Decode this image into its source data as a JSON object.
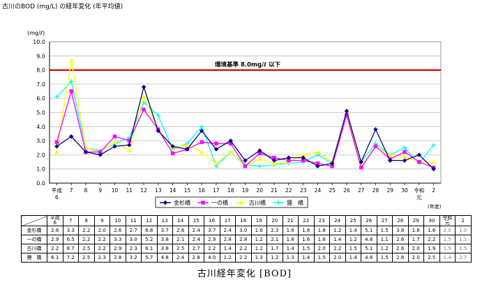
{
  "title": "古川のBOD (mg/L) の経年変化 (年平均値)",
  "caption": "古川経年変化 [BOD]",
  "chart_data": {
    "type": "line",
    "title": "古川のBOD (mg/L) の経年変化 (年平均値)",
    "ylabel": "(mg/ℓ)",
    "xlabel": "(年度)",
    "ylim": [
      0,
      10
    ],
    "yticks": [
      "0.0",
      "1.0",
      "2.0",
      "3.0",
      "4.0",
      "5.0",
      "6.0",
      "7.0",
      "8.0",
      "9.0",
      "10.0"
    ],
    "grid": true,
    "legend_position": "bottom-right",
    "categories": [
      "平成6",
      "7",
      "8",
      "9",
      "10",
      "11",
      "12",
      "13",
      "14",
      "15",
      "16",
      "17",
      "18",
      "19",
      "20",
      "21",
      "22",
      "23",
      "24",
      "25",
      "26",
      "27",
      "28",
      "29",
      "30",
      "令和元",
      "2"
    ],
    "series": [
      {
        "name": "金杉橋",
        "color": "#000080",
        "marker": "diamond",
        "values": [
          2.6,
          3.3,
          2.2,
          2.0,
          2.6,
          2.7,
          6.8,
          3.7,
          2.6,
          2.4,
          3.7,
          2.4,
          3.0,
          1.6,
          2.3,
          1.6,
          1.8,
          1.8,
          1.2,
          1.4,
          5.1,
          1.5,
          3.8,
          1.6,
          1.6,
          2.0,
          1.0
        ]
      },
      {
        "name": "一の橋",
        "color": "#ff00ff",
        "marker": "square",
        "values": [
          2.9,
          6.5,
          2.2,
          2.2,
          3.3,
          3.0,
          5.2,
          3.8,
          2.1,
          2.4,
          2.9,
          2.8,
          2.8,
          1.2,
          2.1,
          1.8,
          1.6,
          1.6,
          1.4,
          1.2,
          4.8,
          1.1,
          2.6,
          1.7,
          2.2,
          1.5,
          1.1
        ]
      },
      {
        "name": "古川橋",
        "color": "#ffff00",
        "marker": "triangle",
        "values": [
          2.2,
          8.7,
          2.5,
          2.2,
          2.9,
          2.3,
          6.1,
          3.8,
          2.5,
          2.7,
          2.2,
          1.4,
          2.2,
          1.2,
          1.7,
          1.4,
          1.5,
          2.0,
          2.2,
          1.5,
          5.1,
          1.2,
          2.6,
          2.0,
          1.9,
          1.5,
          1.5
        ]
      },
      {
        "name": "狸　橋",
        "color": "#00ffff",
        "marker": "none",
        "values": [
          6.1,
          7.2,
          2.5,
          2.3,
          2.8,
          3.2,
          5.7,
          4.8,
          2.4,
          2.8,
          4.0,
          1.2,
          2.2,
          1.3,
          1.2,
          1.3,
          1.4,
          1.5,
          2.0,
          1.4,
          4.8,
          1.5,
          2.8,
          2.0,
          2.5,
          1.4,
          2.7
        ]
      }
    ],
    "reference_line": {
      "value": 8.0,
      "label": "環境基準  8.0mg/ℓ  以下",
      "color": "#cc0000"
    }
  },
  "table": {
    "headers": [
      "平成\n6",
      "7",
      "8",
      "9",
      "10",
      "11",
      "12",
      "13",
      "14",
      "15",
      "16",
      "17",
      "18",
      "19",
      "20",
      "21",
      "22",
      "23",
      "24",
      "25",
      "26",
      "27",
      "28",
      "29",
      "30",
      "令和\n元",
      "2"
    ],
    "rows": [
      {
        "label": "金杉橋",
        "values": [
          "2.6",
          "3.3",
          "2.2",
          "2.0",
          "2.6",
          "2.7",
          "6.8",
          "3.7",
          "2.6",
          "2.4",
          "3.7",
          "2.4",
          "3.0",
          "1.6",
          "2.3",
          "1.6",
          "1.8",
          "1.8",
          "1.2",
          "1.4",
          "5.1",
          "1.5",
          "3.8",
          "1.6",
          "1.6",
          "2.0",
          "1.0"
        ]
      },
      {
        "label": "一の橋",
        "values": [
          "2.9",
          "6.5",
          "2.2",
          "2.2",
          "3.3",
          "3.0",
          "5.2",
          "3.8",
          "2.1",
          "2.4",
          "2.9",
          "2.8",
          "2.8",
          "1.2",
          "2.1",
          "1.8",
          "1.6",
          "1.6",
          "1.4",
          "1.2",
          "4.8",
          "1.1",
          "2.6",
          "1.7",
          "2.2",
          "1.5",
          "1.1"
        ]
      },
      {
        "label": "古川橋",
        "values": [
          "2.2",
          "8.7",
          "2.5",
          "2.2",
          "2.9",
          "2.3",
          "6.1",
          "3.8",
          "2.5",
          "2.7",
          "2.2",
          "1.4",
          "2.2",
          "1.2",
          "1.7",
          "1.4",
          "1.5",
          "2.0",
          "2.2",
          "1.5",
          "5.1",
          "1.2",
          "2.6",
          "2.0",
          "1.9",
          "1.5",
          "1.5"
        ]
      },
      {
        "label": "狸　橋",
        "values": [
          "6.1",
          "7.2",
          "2.5",
          "2.3",
          "2.8",
          "3.2",
          "5.7",
          "4.8",
          "2.4",
          "2.8",
          "4.0",
          "1.2",
          "2.2",
          "1.3",
          "1.2",
          "1.3",
          "1.4",
          "1.5",
          "2.0",
          "1.4",
          "4.8",
          "1.5",
          "2.8",
          "2.0",
          "2.5",
          "1.4",
          "2.7"
        ]
      }
    ]
  }
}
